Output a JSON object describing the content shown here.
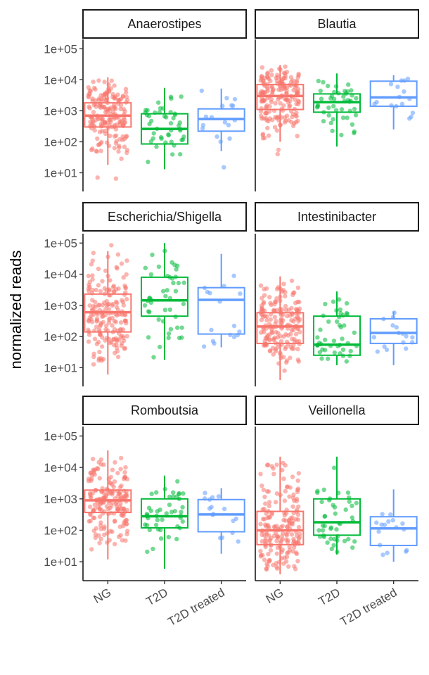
{
  "chart_data": {
    "type": "box",
    "ylabel": "normalized reads",
    "xlabel": "",
    "yscale": "log10",
    "ylim": [
      2.5,
      200000
    ],
    "y_ticks": [
      10,
      100,
      1000,
      10000,
      100000
    ],
    "y_tick_labels": [
      "1e+01",
      "1e+02",
      "1e+03",
      "1e+04",
      "1e+05"
    ],
    "categories": [
      "NG",
      "T2D",
      "T2D treated"
    ],
    "colors": {
      "NG": "#F8766D",
      "T2D": "#00BA38",
      "T2D treated": "#619CFF"
    },
    "legend": "none",
    "grid": false,
    "panels": [
      {
        "title": "Anaerostipes",
        "boxes": [
          {
            "group": "NG",
            "whisker_low": 18,
            "q1": 300,
            "median": 700,
            "q3": 1800,
            "whisker_high": 12000,
            "n": 180,
            "outliers": [
              6.5,
              7
            ]
          },
          {
            "group": "T2D",
            "whisker_low": 13,
            "q1": 85,
            "median": 260,
            "q3": 800,
            "whisker_high": 5500,
            "n": 45,
            "outliers": []
          },
          {
            "group": "T2D treated",
            "whisker_low": 50,
            "q1": 220,
            "median": 540,
            "q3": 1150,
            "whisker_high": 5200,
            "n": 16,
            "outliers": [
              15
            ]
          }
        ]
      },
      {
        "title": "Blautia",
        "boxes": [
          {
            "group": "NG",
            "whisker_low": 100,
            "q1": 1100,
            "median": 3000,
            "q3": 7000,
            "whisker_high": 30000,
            "n": 180,
            "outliers": [
              40,
              55
            ]
          },
          {
            "group": "T2D",
            "whisker_low": 70,
            "q1": 900,
            "median": 1900,
            "q3": 3500,
            "whisker_high": 16000,
            "n": 45,
            "outliers": []
          },
          {
            "group": "T2D treated",
            "whisker_low": 250,
            "q1": 1400,
            "median": 2700,
            "q3": 9000,
            "whisker_high": 14000,
            "n": 16,
            "outliers": []
          }
        ]
      },
      {
        "title": "Escherichia/Shigella",
        "boxes": [
          {
            "group": "NG",
            "whisker_low": 6,
            "q1": 140,
            "median": 600,
            "q3": 2300,
            "whisker_high": 55000,
            "n": 180,
            "outliers": [
              85000
            ]
          },
          {
            "group": "T2D",
            "whisker_low": 18,
            "q1": 450,
            "median": 1450,
            "q3": 8000,
            "whisker_high": 100000,
            "n": 45,
            "outliers": []
          },
          {
            "group": "T2D treated",
            "whisker_low": 45,
            "q1": 120,
            "median": 1500,
            "q3": 3700,
            "whisker_high": 45000,
            "n": 16,
            "outliers": []
          }
        ]
      },
      {
        "title": "Intestinibacter",
        "boxes": [
          {
            "group": "NG",
            "whisker_low": 4,
            "q1": 60,
            "median": 210,
            "q3": 580,
            "whisker_high": 8500,
            "n": 180,
            "outliers": []
          },
          {
            "group": "T2D",
            "whisker_low": 12,
            "q1": 25,
            "median": 55,
            "q3": 450,
            "whisker_high": 2800,
            "n": 45,
            "outliers": []
          },
          {
            "group": "T2D treated",
            "whisker_low": 12,
            "q1": 60,
            "median": 130,
            "q3": 370,
            "whisker_high": 640,
            "n": 16,
            "outliers": []
          }
        ]
      },
      {
        "title": "Romboutsia",
        "boxes": [
          {
            "group": "NG",
            "whisker_low": 12,
            "q1": 370,
            "median": 900,
            "q3": 1900,
            "whisker_high": 35000,
            "n": 180,
            "outliers": []
          },
          {
            "group": "T2D",
            "whisker_low": 6,
            "q1": 120,
            "median": 280,
            "q3": 1000,
            "whisker_high": 5500,
            "n": 45,
            "outliers": []
          },
          {
            "group": "T2D treated",
            "whisker_low": 18,
            "q1": 90,
            "median": 320,
            "q3": 950,
            "whisker_high": 2200,
            "n": 16,
            "outliers": []
          }
        ]
      },
      {
        "title": "Veillonella",
        "boxes": [
          {
            "group": "NG",
            "whisker_low": 4,
            "q1": 35,
            "median": 100,
            "q3": 400,
            "whisker_high": 22000,
            "n": 180,
            "outliers": []
          },
          {
            "group": "T2D",
            "whisker_low": 17,
            "q1": 70,
            "median": 180,
            "q3": 1000,
            "whisker_high": 22000,
            "n": 45,
            "outliers": []
          },
          {
            "group": "T2D treated",
            "whisker_low": 10,
            "q1": 33,
            "median": 115,
            "q3": 270,
            "whisker_high": 2000,
            "n": 16,
            "outliers": []
          }
        ]
      }
    ]
  }
}
